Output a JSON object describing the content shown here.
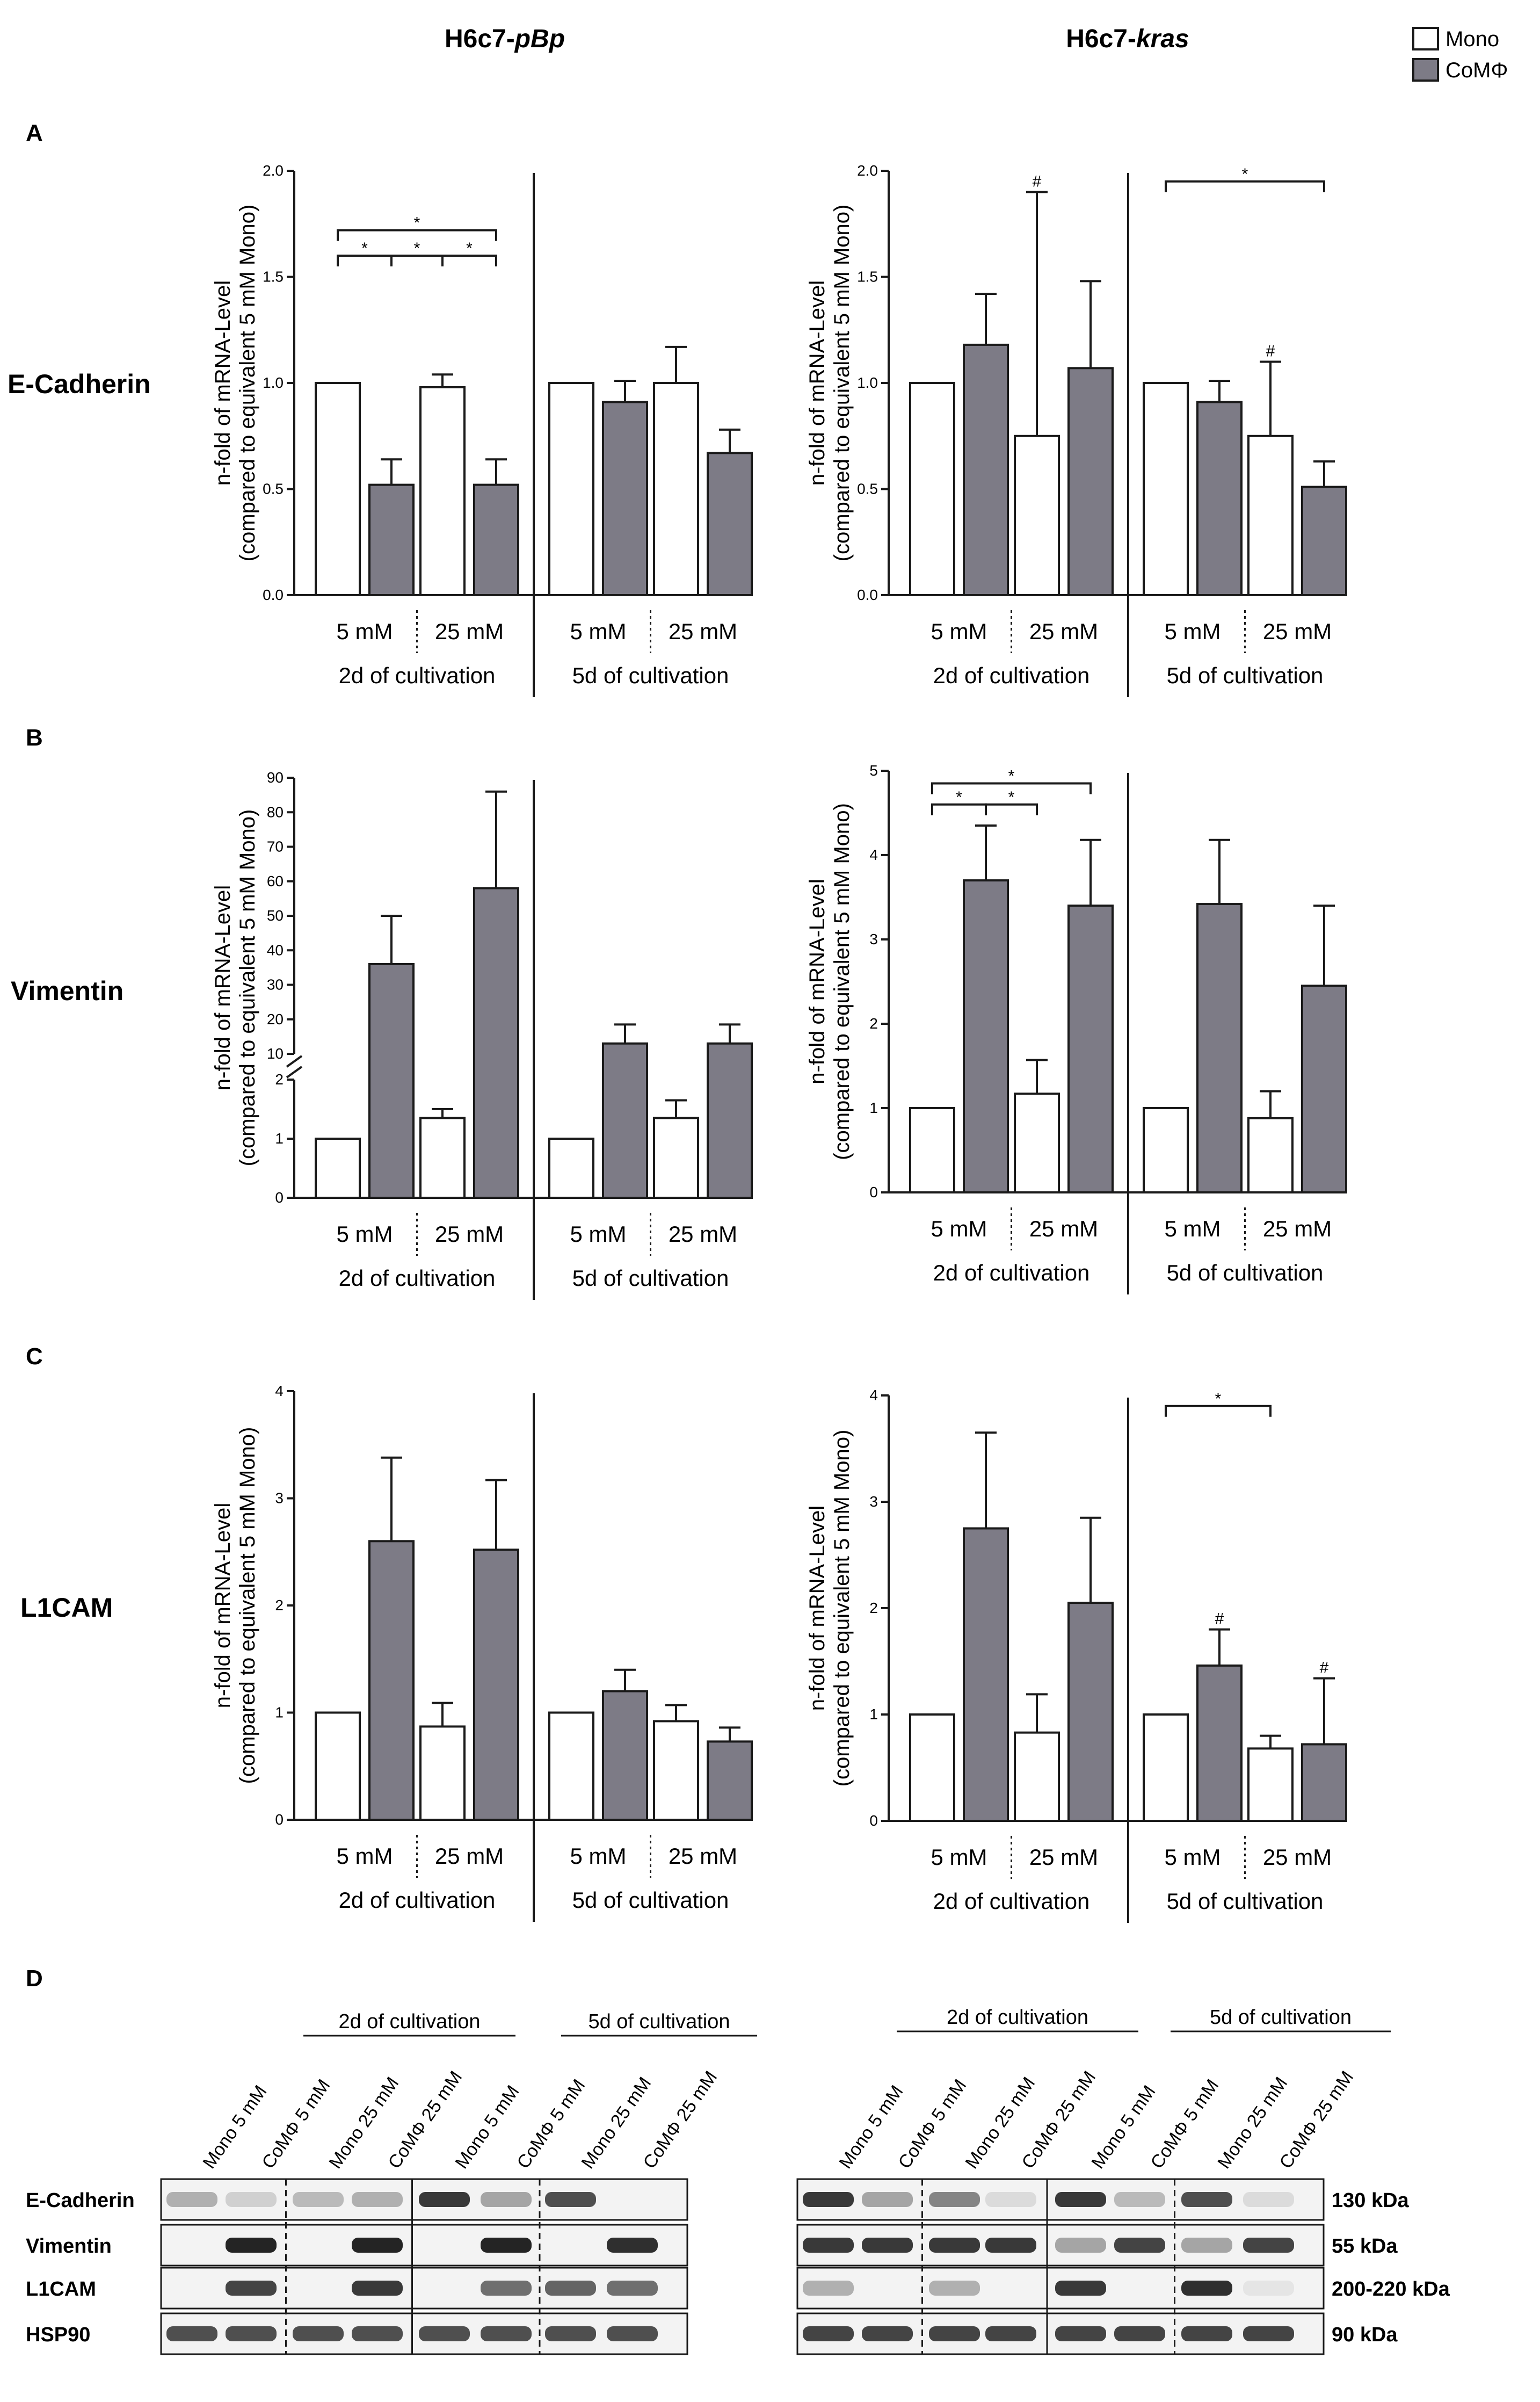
{
  "legend": {
    "mono": "Mono",
    "com": "CoMΦ"
  },
  "column_titles": {
    "left": {
      "prefix": "H6c7-",
      "italic": "pBp"
    },
    "right": {
      "prefix": "H6c7-",
      "italic": "kras"
    }
  },
  "panel_letters": [
    "A",
    "B",
    "C",
    "D"
  ],
  "row_labels": [
    "E-Cadherin",
    "Vimentin",
    "L1CAM"
  ],
  "y_axis_title": [
    "n-fold of mRNA-Level",
    "(compared to equivalent 5 mM Mono)"
  ],
  "x_groups": {
    "conc": [
      "5 mM",
      "25 mM"
    ],
    "time": [
      "2d of cultivation",
      "5d of cultivation"
    ]
  },
  "colors": {
    "mono": "#ffffff",
    "com": "#7d7b86",
    "axis": "#1a1a1a"
  },
  "chart_data": [
    {
      "id": "A-left",
      "type": "bar",
      "title": "E-Cadherin H6c7-pBp",
      "ylabel": "n-fold of mRNA-Level (compared to equivalent 5 mM Mono)",
      "ylim": [
        0,
        2
      ],
      "yticks": [
        "0.0",
        "0.5",
        "1.0",
        "1.5",
        "2.0"
      ],
      "categories": [
        "2d 5 mM Mono",
        "2d 5 mM CoMΦ",
        "2d 25 mM Mono",
        "2d 25 mM CoMΦ",
        "5d 5 mM Mono",
        "5d 5 mM CoMΦ",
        "5d 25 mM Mono",
        "5d 25 mM CoMΦ"
      ],
      "values": [
        1.0,
        0.52,
        0.98,
        0.52,
        1.0,
        0.91,
        1.0,
        0.67
      ],
      "errors": [
        0,
        0.12,
        0.06,
        0.12,
        0,
        0.1,
        0.17,
        0.11
      ],
      "annotations": [
        {
          "text": "*",
          "from": 0,
          "to": 1,
          "level": 1.6
        },
        {
          "text": "*",
          "from": 1,
          "to": 2,
          "level": 1.6
        },
        {
          "text": "*",
          "from": 2,
          "to": 3,
          "level": 1.6
        },
        {
          "text": "*",
          "from": 0,
          "to": 3,
          "level": 1.72
        }
      ]
    },
    {
      "id": "A-right",
      "type": "bar",
      "title": "E-Cadherin H6c7-kras",
      "ylabel": "n-fold of mRNA-Level (compared to equivalent 5 mM Mono)",
      "ylim": [
        0,
        2
      ],
      "yticks": [
        "0.0",
        "0.5",
        "1.0",
        "1.5",
        "2.0"
      ],
      "categories": [
        "2d 5 mM Mono",
        "2d 5 mM CoMΦ",
        "2d 25 mM Mono",
        "2d 25 mM CoMΦ",
        "5d 5 mM Mono",
        "5d 5 mM CoMΦ",
        "5d 25 mM Mono",
        "5d 25 mM CoMΦ"
      ],
      "values": [
        1.0,
        1.18,
        0.75,
        1.07,
        1.0,
        0.91,
        0.75,
        0.51
      ],
      "errors": [
        0,
        0.24,
        1.15,
        0.41,
        0,
        0.1,
        0.35,
        0.12
      ],
      "annotations": [
        {
          "text": "#",
          "bar": 2
        },
        {
          "text": "#",
          "bar": 6
        },
        {
          "text": "*",
          "from": 4,
          "to": 7,
          "level": 1.95
        }
      ]
    },
    {
      "id": "B-left",
      "type": "bar",
      "title": "Vimentin H6c7-pBp",
      "ylabel": "n-fold of mRNA-Level (compared to equivalent 5 mM Mono)",
      "axis_break": {
        "lower": [
          0,
          2
        ],
        "upper": [
          10,
          90
        ]
      },
      "yticks_lower": [
        "0",
        "1",
        "2"
      ],
      "yticks_upper": [
        "10",
        "20",
        "30",
        "40",
        "50",
        "60",
        "70",
        "80",
        "90"
      ],
      "categories": [
        "2d 5 mM Mono",
        "2d 5 mM CoMΦ",
        "2d 25 mM Mono",
        "2d 25 mM CoMΦ",
        "5d 5 mM Mono",
        "5d 5 mM CoMΦ",
        "5d 25 mM Mono",
        "5d 25 mM CoMΦ"
      ],
      "values": [
        1.0,
        36,
        1.35,
        58,
        1.0,
        13,
        1.35,
        13
      ],
      "errors": [
        0,
        14,
        0.15,
        28,
        0,
        5.5,
        0.3,
        5.5
      ],
      "annotations": []
    },
    {
      "id": "B-right",
      "type": "bar",
      "title": "Vimentin H6c7-kras",
      "ylabel": "n-fold of mRNA-Level (compared to equivalent 5 mM Mono)",
      "ylim": [
        0,
        5
      ],
      "yticks": [
        "0",
        "1",
        "2",
        "3",
        "4",
        "5"
      ],
      "categories": [
        "2d 5 mM Mono",
        "2d 5 mM CoMΦ",
        "2d 25 mM Mono",
        "2d 25 mM CoMΦ",
        "5d 5 mM Mono",
        "5d 5 mM CoMΦ",
        "5d 25 mM Mono",
        "5d 25 mM CoMΦ"
      ],
      "values": [
        1.0,
        3.7,
        1.17,
        3.4,
        1.0,
        3.42,
        0.88,
        2.45
      ],
      "errors": [
        0,
        0.65,
        0.4,
        0.78,
        0,
        0.76,
        0.32,
        0.95
      ],
      "annotations": [
        {
          "text": "*",
          "from": 0,
          "to": 1,
          "level": 4.6
        },
        {
          "text": "*",
          "from": 1,
          "to": 2,
          "level": 4.6
        },
        {
          "text": "*",
          "from": 0,
          "to": 3,
          "level": 4.85
        }
      ]
    },
    {
      "id": "C-left",
      "type": "bar",
      "title": "L1CAM H6c7-pBp",
      "ylabel": "n-fold of mRNA-Level (compared to equivalent 5 mM Mono)",
      "ylim": [
        0,
        4
      ],
      "yticks": [
        "0",
        "1",
        "2",
        "3",
        "4"
      ],
      "categories": [
        "2d 5 mM Mono",
        "2d 5 mM CoMΦ",
        "2d 25 mM Mono",
        "2d 25 mM CoMΦ",
        "5d 5 mM Mono",
        "5d 5 mM CoMΦ",
        "5d 25 mM Mono",
        "5d 25 mM CoMΦ"
      ],
      "values": [
        1.0,
        2.6,
        0.87,
        2.52,
        1.0,
        1.2,
        0.92,
        0.73
      ],
      "errors": [
        0,
        0.78,
        0.22,
        0.65,
        0,
        0.2,
        0.15,
        0.13
      ],
      "annotations": []
    },
    {
      "id": "C-right",
      "type": "bar",
      "title": "L1CAM H6c7-kras",
      "ylabel": "n-fold of mRNA-Level (compared to equivalent 5 mM Mono)",
      "ylim": [
        0,
        4
      ],
      "yticks": [
        "0",
        "1",
        "2",
        "3",
        "4"
      ],
      "categories": [
        "2d 5 mM Mono",
        "2d 5 mM CoMΦ",
        "2d 25 mM Mono",
        "2d 25 mM CoMΦ",
        "5d 5 mM Mono",
        "5d 5 mM CoMΦ",
        "5d 25 mM Mono",
        "5d 25 mM CoMΦ"
      ],
      "values": [
        1.0,
        2.75,
        0.83,
        2.05,
        1.0,
        1.46,
        0.68,
        0.72
      ],
      "errors": [
        0,
        0.9,
        0.36,
        0.8,
        0,
        0.34,
        0.12,
        0.62
      ],
      "annotations": [
        {
          "text": "#",
          "bar": 5
        },
        {
          "text": "#",
          "bar": 7
        },
        {
          "text": "*",
          "from": 4,
          "to": 6,
          "level": 3.9
        }
      ]
    }
  ],
  "western_blot": {
    "group_labels": [
      "2d of cultivation",
      "5d of cultivation"
    ],
    "lane_labels": [
      "Mono 5 mM",
      "CoMΦ 5 mM",
      "Mono 25 mM",
      "CoMΦ 25 mM",
      "Mono 5 mM",
      "CoMΦ 5 mM",
      "Mono 25 mM",
      "CoMΦ 25 mM"
    ],
    "row_labels": [
      "E-Cadherin",
      "Vimentin",
      "L1CAM",
      "HSP90"
    ],
    "sizes": [
      "130 kDa",
      "55 kDa",
      "200-220 kDa",
      "90 kDa"
    ],
    "band_intensity_left": [
      [
        0.3,
        0.15,
        0.25,
        0.3,
        0.85,
        0.35,
        0.75,
        0.0
      ],
      [
        0.0,
        0.95,
        0.0,
        0.95,
        0.0,
        0.95,
        0.0,
        0.9
      ],
      [
        0.0,
        0.8,
        0.0,
        0.85,
        0.0,
        0.6,
        0.65,
        0.6
      ],
      [
        0.75,
        0.75,
        0.75,
        0.75,
        0.75,
        0.75,
        0.75,
        0.75
      ]
    ],
    "band_intensity_right": [
      [
        0.85,
        0.35,
        0.5,
        0.1,
        0.85,
        0.25,
        0.75,
        0.1
      ],
      [
        0.85,
        0.85,
        0.85,
        0.85,
        0.35,
        0.8,
        0.35,
        0.8
      ],
      [
        0.3,
        0.0,
        0.3,
        0.0,
        0.85,
        0.0,
        0.9,
        0.05
      ],
      [
        0.8,
        0.8,
        0.8,
        0.8,
        0.8,
        0.8,
        0.8,
        0.8
      ]
    ]
  }
}
